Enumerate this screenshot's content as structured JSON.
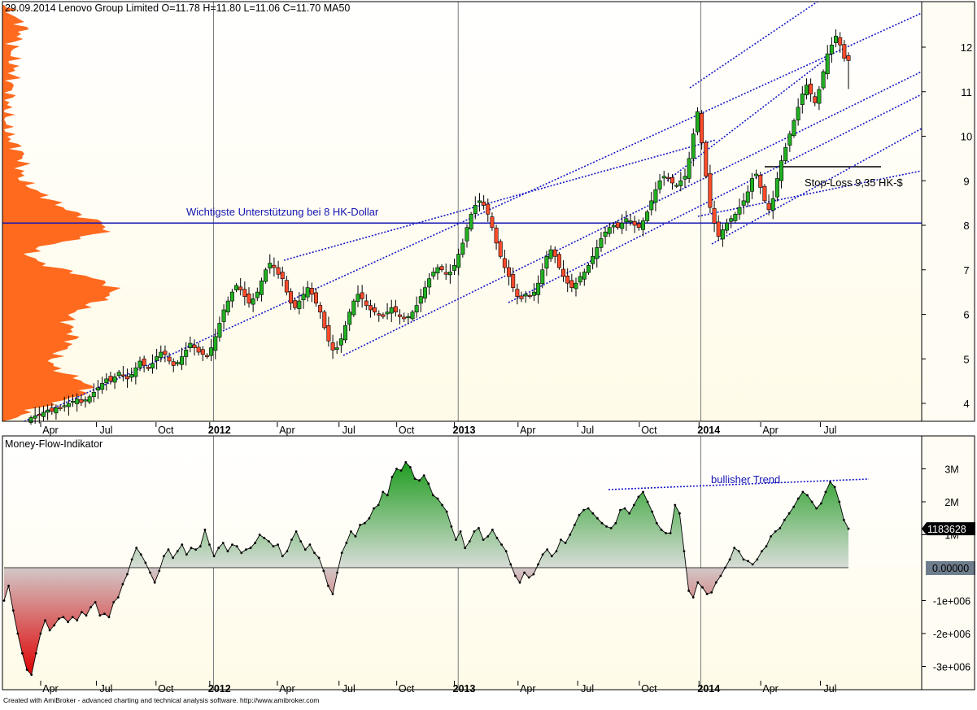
{
  "chart_data": [
    {
      "type": "candlestick",
      "title": "29.09.2014 Lenovo Group Limited  O=11.78  H=11.80  L=11.06  C=11.70    MA50",
      "ylim": [
        3.6,
        12.9
      ],
      "yticks": [
        4,
        5,
        6,
        7,
        8,
        9,
        10,
        11,
        12
      ],
      "x_axis_labels": [
        {
          "label": "Apr",
          "bold": false,
          "x": 2.8
        },
        {
          "label": "Jul",
          "bold": false,
          "x": 5.6
        },
        {
          "label": "Oct",
          "bold": false,
          "x": 8.6
        },
        {
          "label": "2012",
          "bold": true,
          "x": 11.3
        },
        {
          "label": "Apr",
          "bold": false,
          "x": 14.7
        },
        {
          "label": "Jul",
          "bold": false,
          "x": 17.8
        },
        {
          "label": "Oct",
          "bold": false,
          "x": 20.7
        },
        {
          "label": "2013",
          "bold": true,
          "x": 23.6
        },
        {
          "label": "Apr",
          "bold": false,
          "x": 26.8
        },
        {
          "label": "Jul",
          "bold": false,
          "x": 29.8
        },
        {
          "label": "Oct",
          "bold": false,
          "x": 32.9
        },
        {
          "label": "2014",
          "bold": true,
          "x": 35.9
        },
        {
          "label": "Apr",
          "bold": false,
          "x": 39.0
        },
        {
          "label": "Jul",
          "bold": false,
          "x": 42.0
        }
      ],
      "year_dividers": [
        11.0,
        23.3,
        35.5
      ],
      "xlim": [
        0,
        48.0
      ],
      "close": [
        3.68,
        3.72,
        3.75,
        3.8,
        3.85,
        3.82,
        3.9,
        3.88,
        3.95,
        4.0,
        4.05,
        4.1,
        4.02,
        4.08,
        4.15,
        4.25,
        4.35,
        4.45,
        4.55,
        4.5,
        4.6,
        4.7,
        4.62,
        4.55,
        4.65,
        4.8,
        4.95,
        4.85,
        4.78,
        4.9,
        5.05,
        5.15,
        5.1,
        4.95,
        4.85,
        4.92,
        5.05,
        5.2,
        5.35,
        5.25,
        5.15,
        5.1,
        5.05,
        5.25,
        5.5,
        5.8,
        6.1,
        6.3,
        6.5,
        6.65,
        6.55,
        6.4,
        6.25,
        6.35,
        6.5,
        6.75,
        7.0,
        7.15,
        7.05,
        6.9,
        6.8,
        6.5,
        6.25,
        6.15,
        6.3,
        6.45,
        6.6,
        6.45,
        6.25,
        6.05,
        5.7,
        5.4,
        5.2,
        5.25,
        5.45,
        5.75,
        6.05,
        6.3,
        6.45,
        6.35,
        6.2,
        6.1,
        6.05,
        5.98,
        5.95,
        6.05,
        6.15,
        6.05,
        5.95,
        5.9,
        5.95,
        6.05,
        6.2,
        6.4,
        6.6,
        6.8,
        6.95,
        7.05,
        7.0,
        6.9,
        6.95,
        7.1,
        7.35,
        7.6,
        7.95,
        8.25,
        8.45,
        8.55,
        8.45,
        8.25,
        7.95,
        7.6,
        7.3,
        7.05,
        6.85,
        6.6,
        6.4,
        6.35,
        6.45,
        6.4,
        6.5,
        6.7,
        7.0,
        7.3,
        7.45,
        7.3,
        7.05,
        6.85,
        6.7,
        6.6,
        6.7,
        6.85,
        6.95,
        7.1,
        7.3,
        7.5,
        7.7,
        7.85,
        7.95,
        8.0,
        7.95,
        8.05,
        8.15,
        8.1,
        8.0,
        7.95,
        8.1,
        8.3,
        8.55,
        8.8,
        9.0,
        9.1,
        9.05,
        8.95,
        8.9,
        9.0,
        9.1,
        9.5,
        10.05,
        10.55,
        9.85,
        9.1,
        8.4,
        8.05,
        7.75,
        7.9,
        8.05,
        8.15,
        8.25,
        8.4,
        8.55,
        8.75,
        9.05,
        9.15,
        8.85,
        8.55,
        8.35,
        8.6,
        9.05,
        9.45,
        9.75,
        10.05,
        10.35,
        10.65,
        10.95,
        11.15,
        10.95,
        10.75,
        11.05,
        11.45,
        11.85,
        12.05,
        12.25,
        12.05,
        11.75,
        11.7
      ]
    },
    {
      "type": "area",
      "title": "Money-Flow-Indikator",
      "ylim": [
        -3300000,
        3600000
      ],
      "ytick_labels": [
        {
          "value": 3000000,
          "label": "3M"
        },
        {
          "value": 2000000,
          "label": "2M"
        },
        {
          "value": 1000000,
          "label": "1M"
        },
        {
          "value": -1000000,
          "label": "-1e+006"
        },
        {
          "value": -2000000,
          "label": "-2e+006"
        },
        {
          "value": -3000000,
          "label": "-3e+006"
        }
      ],
      "zero_label": "0.00000",
      "last_value_label": "1183628",
      "values": [
        -1000000,
        -550000,
        -1300000,
        -2000000,
        -2600000,
        -3100000,
        -3250000,
        -2600000,
        -2000000,
        -1600000,
        -1900000,
        -1750000,
        -1550000,
        -1500000,
        -1650000,
        -1500000,
        -1600000,
        -1350000,
        -1450000,
        -1200000,
        -1050000,
        -1450000,
        -1400000,
        -1500000,
        -1050000,
        -900000,
        -500000,
        -200000,
        250000,
        600000,
        400000,
        150000,
        -150000,
        -450000,
        -100000,
        350000,
        550000,
        300000,
        500000,
        700000,
        400000,
        600000,
        550000,
        650000,
        1150000,
        700000,
        350000,
        600000,
        750000,
        500000,
        700000,
        650000,
        450000,
        550000,
        600000,
        750000,
        1000000,
        900000,
        800000,
        650000,
        700000,
        350000,
        500000,
        850000,
        1100000,
        800000,
        550000,
        700000,
        450000,
        300000,
        -100000,
        -550000,
        -800000,
        -150000,
        450000,
        750000,
        1100000,
        950000,
        1300000,
        1350000,
        1500000,
        1800000,
        1900000,
        2300000,
        2200000,
        2750000,
        3000000,
        2950000,
        3200000,
        3050000,
        2700000,
        2650000,
        2800000,
        2550000,
        2200000,
        2100000,
        1900000,
        1700000,
        1250000,
        850000,
        1100000,
        600000,
        800000,
        1100000,
        1200000,
        850000,
        950000,
        1150000,
        900000,
        700000,
        500000,
        100000,
        -250000,
        -450000,
        -150000,
        -300000,
        -200000,
        100000,
        400000,
        550000,
        350000,
        500000,
        850000,
        750000,
        1000000,
        1300000,
        1600000,
        1750000,
        1800000,
        1650000,
        1500000,
        1350000,
        1250000,
        1200000,
        1350000,
        1750000,
        1800000,
        1650000,
        1900000,
        2150000,
        2300000,
        2000000,
        1700000,
        1350000,
        1150000,
        1050000,
        1050000,
        1900000,
        1650000,
        500000,
        -700000,
        -900000,
        -450000,
        -600000,
        -800000,
        -750000,
        -450000,
        -250000,
        0,
        250000,
        600000,
        500000,
        250000,
        200000,
        100000,
        250000,
        500000,
        650000,
        950000,
        1100000,
        1200000,
        1450000,
        1650000,
        1850000,
        2100000,
        2300000,
        2200000,
        2000000,
        1800000,
        1950000,
        2300000,
        2600000,
        2450000,
        2000000,
        1450000,
        1183628
      ]
    }
  ],
  "annotations": {
    "support": "Wichtigste Unterstützung bei 8 HK-Dollar",
    "stop_loss": "Stop-Loss 9,35 HK-$",
    "bullish": "bullisher Trend"
  },
  "footer": "Created with AmiBroker - advanced charting and technical analysis software. http://www.amibroker.com",
  "colors": {
    "up": "#22b022",
    "down": "#ff4c2c",
    "trend": "#1616c8",
    "support_line": "#1414b4",
    "profile": "#ff6a1e",
    "axis_bg": "#fffcf4",
    "value_badge": "#6e7d8c"
  }
}
